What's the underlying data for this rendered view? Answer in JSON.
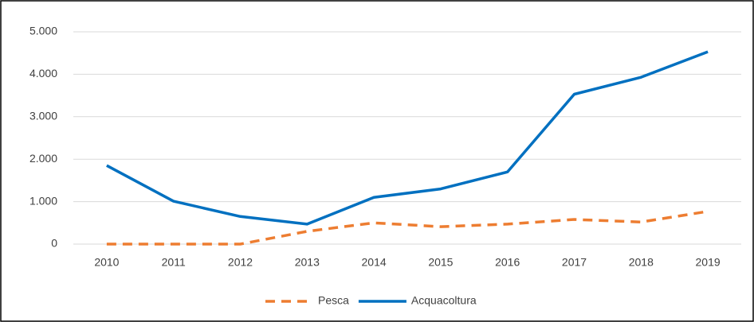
{
  "chart_data": {
    "type": "line",
    "categories": [
      "2010",
      "2011",
      "2012",
      "2013",
      "2014",
      "2015",
      "2016",
      "2017",
      "2018",
      "2019"
    ],
    "series": [
      {
        "name": "Pesca",
        "color": "#ed7d31",
        "dashed": true,
        "values": [
          0,
          0,
          0,
          300,
          500,
          410,
          470,
          580,
          520,
          770
        ]
      },
      {
        "name": "Acquacoltura",
        "color": "#0070c0",
        "dashed": false,
        "values": [
          1850,
          1010,
          650,
          470,
          1100,
          1300,
          1700,
          3530,
          3930,
          4530
        ]
      }
    ],
    "ylim": [
      0,
      5000
    ],
    "yticks": [
      0,
      {
        "value": 1000,
        "label": "1.000"
      },
      {
        "value": 2000,
        "label": "2.000"
      },
      {
        "value": 3000,
        "label": "3.000"
      },
      {
        "value": 4000,
        "label": "4.000"
      },
      {
        "value": 5000,
        "label": "5.000"
      }
    ],
    "grid": true,
    "legend": "bottom"
  }
}
